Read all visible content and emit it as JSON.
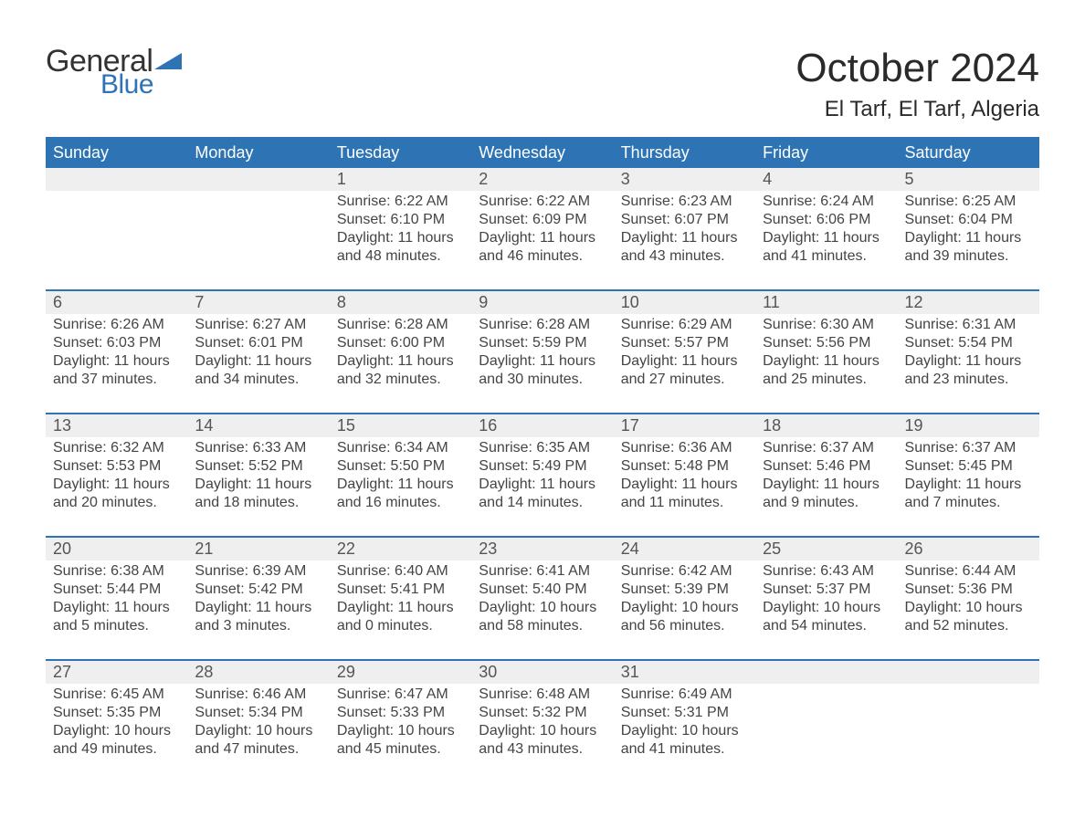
{
  "colors": {
    "brand_blue": "#2e74b5",
    "row_gray": "#efefef",
    "text_dark": "#3a3a3a",
    "background": "#ffffff"
  },
  "logo": {
    "word1": "General",
    "word2": "Blue"
  },
  "header": {
    "month_title": "October 2024",
    "location": "El Tarf, El Tarf, Algeria"
  },
  "days_of_week": [
    "Sunday",
    "Monday",
    "Tuesday",
    "Wednesday",
    "Thursday",
    "Friday",
    "Saturday"
  ],
  "weeks": [
    [
      null,
      null,
      {
        "n": "1",
        "sunrise": "Sunrise: 6:22 AM",
        "sunset": "Sunset: 6:10 PM",
        "day1": "Daylight: 11 hours",
        "day2": "and 48 minutes."
      },
      {
        "n": "2",
        "sunrise": "Sunrise: 6:22 AM",
        "sunset": "Sunset: 6:09 PM",
        "day1": "Daylight: 11 hours",
        "day2": "and 46 minutes."
      },
      {
        "n": "3",
        "sunrise": "Sunrise: 6:23 AM",
        "sunset": "Sunset: 6:07 PM",
        "day1": "Daylight: 11 hours",
        "day2": "and 43 minutes."
      },
      {
        "n": "4",
        "sunrise": "Sunrise: 6:24 AM",
        "sunset": "Sunset: 6:06 PM",
        "day1": "Daylight: 11 hours",
        "day2": "and 41 minutes."
      },
      {
        "n": "5",
        "sunrise": "Sunrise: 6:25 AM",
        "sunset": "Sunset: 6:04 PM",
        "day1": "Daylight: 11 hours",
        "day2": "and 39 minutes."
      }
    ],
    [
      {
        "n": "6",
        "sunrise": "Sunrise: 6:26 AM",
        "sunset": "Sunset: 6:03 PM",
        "day1": "Daylight: 11 hours",
        "day2": "and 37 minutes."
      },
      {
        "n": "7",
        "sunrise": "Sunrise: 6:27 AM",
        "sunset": "Sunset: 6:01 PM",
        "day1": "Daylight: 11 hours",
        "day2": "and 34 minutes."
      },
      {
        "n": "8",
        "sunrise": "Sunrise: 6:28 AM",
        "sunset": "Sunset: 6:00 PM",
        "day1": "Daylight: 11 hours",
        "day2": "and 32 minutes."
      },
      {
        "n": "9",
        "sunrise": "Sunrise: 6:28 AM",
        "sunset": "Sunset: 5:59 PM",
        "day1": "Daylight: 11 hours",
        "day2": "and 30 minutes."
      },
      {
        "n": "10",
        "sunrise": "Sunrise: 6:29 AM",
        "sunset": "Sunset: 5:57 PM",
        "day1": "Daylight: 11 hours",
        "day2": "and 27 minutes."
      },
      {
        "n": "11",
        "sunrise": "Sunrise: 6:30 AM",
        "sunset": "Sunset: 5:56 PM",
        "day1": "Daylight: 11 hours",
        "day2": "and 25 minutes."
      },
      {
        "n": "12",
        "sunrise": "Sunrise: 6:31 AM",
        "sunset": "Sunset: 5:54 PM",
        "day1": "Daylight: 11 hours",
        "day2": "and 23 minutes."
      }
    ],
    [
      {
        "n": "13",
        "sunrise": "Sunrise: 6:32 AM",
        "sunset": "Sunset: 5:53 PM",
        "day1": "Daylight: 11 hours",
        "day2": "and 20 minutes."
      },
      {
        "n": "14",
        "sunrise": "Sunrise: 6:33 AM",
        "sunset": "Sunset: 5:52 PM",
        "day1": "Daylight: 11 hours",
        "day2": "and 18 minutes."
      },
      {
        "n": "15",
        "sunrise": "Sunrise: 6:34 AM",
        "sunset": "Sunset: 5:50 PM",
        "day1": "Daylight: 11 hours",
        "day2": "and 16 minutes."
      },
      {
        "n": "16",
        "sunrise": "Sunrise: 6:35 AM",
        "sunset": "Sunset: 5:49 PM",
        "day1": "Daylight: 11 hours",
        "day2": "and 14 minutes."
      },
      {
        "n": "17",
        "sunrise": "Sunrise: 6:36 AM",
        "sunset": "Sunset: 5:48 PM",
        "day1": "Daylight: 11 hours",
        "day2": "and 11 minutes."
      },
      {
        "n": "18",
        "sunrise": "Sunrise: 6:37 AM",
        "sunset": "Sunset: 5:46 PM",
        "day1": "Daylight: 11 hours",
        "day2": "and 9 minutes."
      },
      {
        "n": "19",
        "sunrise": "Sunrise: 6:37 AM",
        "sunset": "Sunset: 5:45 PM",
        "day1": "Daylight: 11 hours",
        "day2": "and 7 minutes."
      }
    ],
    [
      {
        "n": "20",
        "sunrise": "Sunrise: 6:38 AM",
        "sunset": "Sunset: 5:44 PM",
        "day1": "Daylight: 11 hours",
        "day2": "and 5 minutes."
      },
      {
        "n": "21",
        "sunrise": "Sunrise: 6:39 AM",
        "sunset": "Sunset: 5:42 PM",
        "day1": "Daylight: 11 hours",
        "day2": "and 3 minutes."
      },
      {
        "n": "22",
        "sunrise": "Sunrise: 6:40 AM",
        "sunset": "Sunset: 5:41 PM",
        "day1": "Daylight: 11 hours",
        "day2": "and 0 minutes."
      },
      {
        "n": "23",
        "sunrise": "Sunrise: 6:41 AM",
        "sunset": "Sunset: 5:40 PM",
        "day1": "Daylight: 10 hours",
        "day2": "and 58 minutes."
      },
      {
        "n": "24",
        "sunrise": "Sunrise: 6:42 AM",
        "sunset": "Sunset: 5:39 PM",
        "day1": "Daylight: 10 hours",
        "day2": "and 56 minutes."
      },
      {
        "n": "25",
        "sunrise": "Sunrise: 6:43 AM",
        "sunset": "Sunset: 5:37 PM",
        "day1": "Daylight: 10 hours",
        "day2": "and 54 minutes."
      },
      {
        "n": "26",
        "sunrise": "Sunrise: 6:44 AM",
        "sunset": "Sunset: 5:36 PM",
        "day1": "Daylight: 10 hours",
        "day2": "and 52 minutes."
      }
    ],
    [
      {
        "n": "27",
        "sunrise": "Sunrise: 6:45 AM",
        "sunset": "Sunset: 5:35 PM",
        "day1": "Daylight: 10 hours",
        "day2": "and 49 minutes."
      },
      {
        "n": "28",
        "sunrise": "Sunrise: 6:46 AM",
        "sunset": "Sunset: 5:34 PM",
        "day1": "Daylight: 10 hours",
        "day2": "and 47 minutes."
      },
      {
        "n": "29",
        "sunrise": "Sunrise: 6:47 AM",
        "sunset": "Sunset: 5:33 PM",
        "day1": "Daylight: 10 hours",
        "day2": "and 45 minutes."
      },
      {
        "n": "30",
        "sunrise": "Sunrise: 6:48 AM",
        "sunset": "Sunset: 5:32 PM",
        "day1": "Daylight: 10 hours",
        "day2": "and 43 minutes."
      },
      {
        "n": "31",
        "sunrise": "Sunrise: 6:49 AM",
        "sunset": "Sunset: 5:31 PM",
        "day1": "Daylight: 10 hours",
        "day2": "and 41 minutes."
      },
      null,
      null
    ]
  ]
}
